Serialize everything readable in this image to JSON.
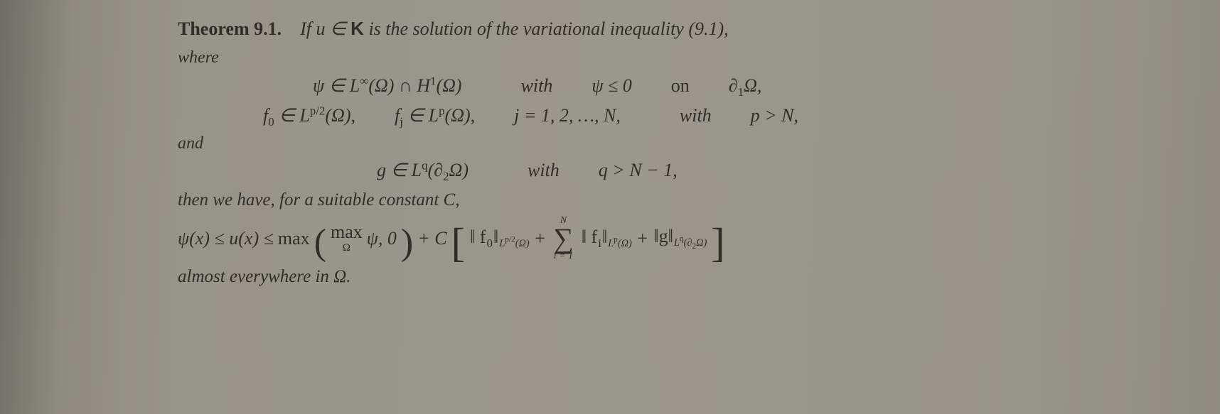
{
  "colors": {
    "page_bg": "#97948a",
    "text": "#2f2e2a"
  },
  "typography": {
    "body_font": "Times New Roman",
    "body_size_pt": 20,
    "math_size_pt": 20,
    "bold_label": true,
    "italic_statement": true
  },
  "theorem": {
    "label": "Theorem 9.1.",
    "statement_lead": "If u ∈ ",
    "set_symbol": "K",
    "statement_tail": " is the solution of the variational inequality (9.1),",
    "where": "where",
    "line1_a": "ψ ∈ L",
    "line1_a_sup": "∞",
    "line1_a_tail": "(Ω) ∩ H",
    "line1_a_sup2": "1",
    "line1_a_tail2": "(Ω)",
    "line1_with": "with",
    "line1_cond": "ψ ≤ 0",
    "line1_on": "on",
    "line1_bdry": "∂",
    "line1_bdry_sub": "1",
    "line1_bdry_tail": "Ω,",
    "line2_f0": "f",
    "line2_f0_sub": "0",
    "line2_f0_in": " ∈ L",
    "line2_f0_sup": "p/2",
    "line2_f0_tail": "(Ω),",
    "line2_fj": "f",
    "line2_fj_sub": "j",
    "line2_fj_in": " ∈ L",
    "line2_fj_sup": "p",
    "line2_fj_tail": "(Ω),",
    "line2_j": "j = 1, 2, …, N,",
    "line2_with": "with",
    "line2_p": "p > N,",
    "and": "and",
    "line3_g": "g ∈ L",
    "line3_g_sup": "q",
    "line3_g_tail": "(∂",
    "line3_g_sub": "2",
    "line3_g_tail2": "Ω)",
    "line3_with": "with",
    "line3_q": "q > N − 1,",
    "then": "then we have, for a suitable constant C,",
    "ineq_psi": "ψ(x) ≤ u(x) ≤ ",
    "ineq_max": "max",
    "ineq_maxO": "max",
    "ineq_maxO_under": "Ω",
    "ineq_maxarg": " ψ, 0",
    "ineq_plusC": " + C",
    "ineq_normf0_l": "‖ f",
    "ineq_normf0_sub": "0",
    "ineq_normf0_r": "‖",
    "ineq_normf0_space": "L",
    "ineq_normf0_space_sup": "p/2",
    "ineq_normf0_space_tail": "(Ω)",
    "ineq_plus1": " + ",
    "sum_upper": "N",
    "sum_lower": "i = 1",
    "ineq_normfi_l": "‖ f",
    "ineq_normfi_sub": "i",
    "ineq_normfi_r": "‖",
    "ineq_normfi_space": "L",
    "ineq_normfi_space_sup": "p",
    "ineq_normfi_space_tail": "(Ω)",
    "ineq_plus2": " + ",
    "ineq_normg_l": "‖g‖",
    "ineq_normg_space": "L",
    "ineq_normg_space_sup": "q",
    "ineq_normg_space_tail": "(∂",
    "ineq_normg_space_sub": "2",
    "ineq_normg_space_tail2": "Ω)",
    "almost": "almost everywhere in Ω."
  }
}
